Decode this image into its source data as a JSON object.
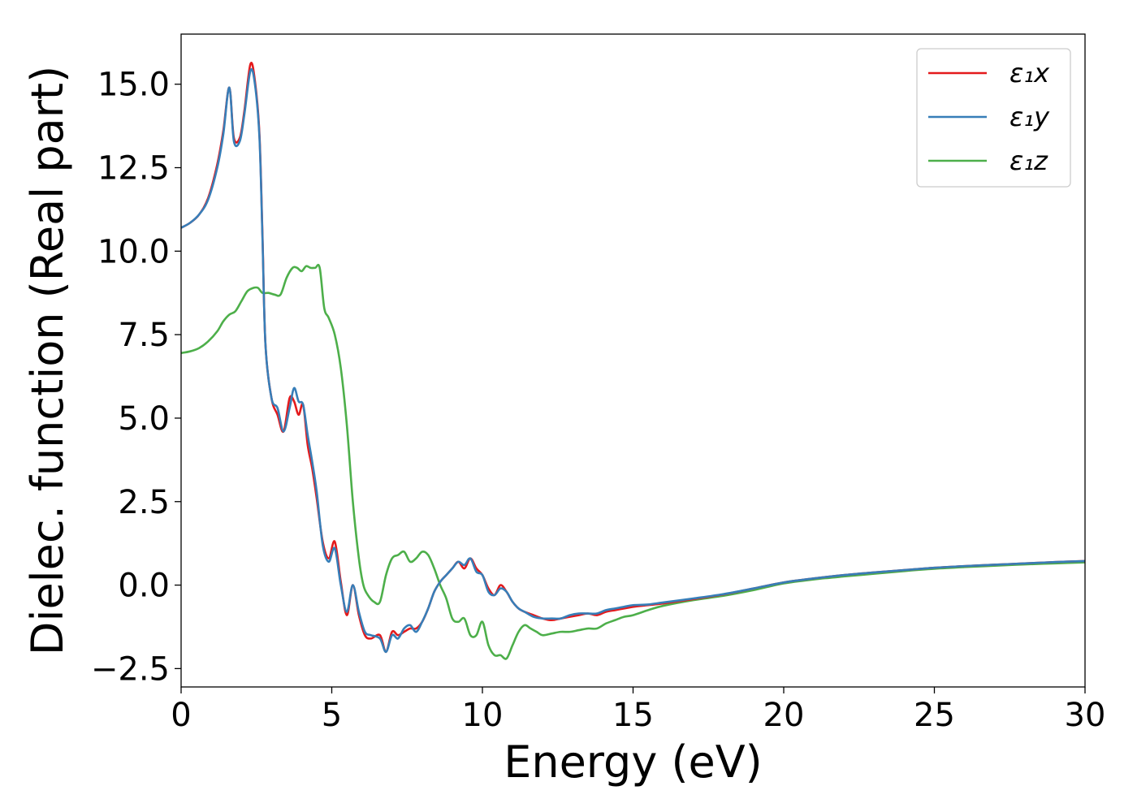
{
  "chart_data": {
    "type": "line",
    "xlabel": "Energy (eV)",
    "ylabel": "Dielec. function (Real part)",
    "xlim": [
      0,
      30
    ],
    "ylim": [
      -3.05,
      16.5
    ],
    "xticks": [
      0,
      5,
      10,
      15,
      20,
      25,
      30
    ],
    "xtick_labels": [
      "0",
      "5",
      "10",
      "15",
      "20",
      "25",
      "30"
    ],
    "yticks": [
      -2.5,
      0,
      2.5,
      5,
      7.5,
      10,
      12.5,
      15
    ],
    "ytick_labels": [
      "−2.5",
      "0.0",
      "2.5",
      "5.0",
      "7.5",
      "10.0",
      "12.5",
      "15.0"
    ],
    "grid": false,
    "legend_position": "top-right",
    "series": [
      {
        "name": "ε₁x",
        "color": "#e41a1c",
        "x": [
          0,
          0.3,
          0.6,
          0.9,
          1.2,
          1.4,
          1.6,
          1.75,
          1.95,
          2.1,
          2.3,
          2.45,
          2.6,
          2.7,
          2.8,
          3.0,
          3.2,
          3.4,
          3.6,
          3.75,
          3.9,
          4.05,
          4.2,
          4.35,
          4.5,
          4.7,
          4.9,
          5.1,
          5.3,
          5.5,
          5.7,
          5.9,
          6.1,
          6.3,
          6.6,
          6.8,
          7.0,
          7.2,
          7.4,
          7.6,
          7.8,
          8.0,
          8.2,
          8.4,
          8.6,
          8.8,
          9.0,
          9.2,
          9.4,
          9.6,
          9.8,
          10.0,
          10.2,
          10.4,
          10.6,
          10.8,
          11.0,
          11.2,
          11.4,
          11.7,
          12.0,
          12.3,
          12.6,
          12.9,
          13.2,
          13.5,
          13.8,
          14.1,
          14.4,
          14.7,
          15.0,
          15.5,
          16.0,
          17.0,
          18.0,
          19.0,
          20.0,
          21.0,
          22.0,
          23.0,
          24.0,
          25.0,
          26.0,
          27.0,
          28.0,
          29.0,
          30.0
        ],
        "y": [
          10.7,
          10.85,
          11.1,
          11.6,
          12.6,
          13.6,
          14.9,
          13.4,
          13.4,
          14.2,
          15.6,
          15.1,
          13.5,
          10.5,
          7.2,
          5.6,
          5.1,
          4.6,
          5.6,
          5.5,
          5.1,
          5.4,
          4.2,
          3.5,
          2.6,
          1.3,
          0.8,
          1.3,
          0.1,
          -0.9,
          0.0,
          -0.9,
          -1.5,
          -1.6,
          -1.5,
          -2.0,
          -1.4,
          -1.5,
          -1.4,
          -1.3,
          -1.3,
          -1.1,
          -0.7,
          -0.2,
          0.1,
          0.3,
          0.5,
          0.7,
          0.5,
          0.8,
          0.5,
          0.3,
          -0.1,
          -0.3,
          0.0,
          -0.2,
          -0.5,
          -0.7,
          -0.8,
          -0.9,
          -1.0,
          -1.05,
          -1.0,
          -0.95,
          -0.9,
          -0.85,
          -0.9,
          -0.8,
          -0.75,
          -0.7,
          -0.65,
          -0.6,
          -0.55,
          -0.42,
          -0.28,
          -0.1,
          0.08,
          0.2,
          0.3,
          0.38,
          0.45,
          0.52,
          0.57,
          0.61,
          0.65,
          0.69,
          0.72
        ]
      },
      {
        "name": "ε₁y",
        "color": "#377eb8",
        "x": [
          0,
          0.3,
          0.6,
          0.9,
          1.2,
          1.4,
          1.6,
          1.75,
          1.95,
          2.1,
          2.3,
          2.45,
          2.6,
          2.7,
          2.8,
          3.0,
          3.2,
          3.4,
          3.6,
          3.75,
          3.9,
          4.05,
          4.2,
          4.35,
          4.5,
          4.7,
          4.9,
          5.1,
          5.3,
          5.5,
          5.7,
          5.9,
          6.1,
          6.3,
          6.6,
          6.8,
          7.0,
          7.2,
          7.4,
          7.6,
          7.8,
          8.0,
          8.2,
          8.4,
          8.6,
          8.8,
          9.0,
          9.2,
          9.4,
          9.6,
          9.8,
          10.0,
          10.2,
          10.4,
          10.6,
          10.8,
          11.0,
          11.2,
          11.4,
          11.7,
          12.0,
          12.3,
          12.6,
          12.9,
          13.2,
          13.5,
          13.8,
          14.1,
          14.4,
          14.7,
          15.0,
          15.5,
          16.0,
          17.0,
          18.0,
          19.0,
          20.0,
          21.0,
          22.0,
          23.0,
          24.0,
          25.0,
          26.0,
          27.0,
          28.0,
          29.0,
          30.0
        ],
        "y": [
          10.7,
          10.85,
          11.1,
          11.55,
          12.5,
          13.5,
          14.9,
          13.3,
          13.3,
          14.1,
          15.4,
          15.0,
          13.4,
          10.4,
          7.2,
          5.6,
          5.3,
          4.6,
          5.3,
          5.9,
          5.5,
          5.4,
          4.5,
          3.7,
          2.8,
          1.2,
          0.7,
          1.1,
          0.0,
          -0.8,
          0.0,
          -0.8,
          -1.4,
          -1.5,
          -1.6,
          -2.0,
          -1.5,
          -1.6,
          -1.3,
          -1.2,
          -1.4,
          -1.1,
          -0.7,
          -0.2,
          0.1,
          0.3,
          0.5,
          0.7,
          0.6,
          0.8,
          0.4,
          0.3,
          -0.2,
          -0.3,
          -0.1,
          -0.2,
          -0.5,
          -0.7,
          -0.8,
          -0.95,
          -1.0,
          -1.0,
          -1.0,
          -0.9,
          -0.85,
          -0.85,
          -0.85,
          -0.75,
          -0.7,
          -0.65,
          -0.6,
          -0.58,
          -0.52,
          -0.4,
          -0.27,
          -0.1,
          0.08,
          0.2,
          0.3,
          0.38,
          0.45,
          0.52,
          0.57,
          0.61,
          0.65,
          0.69,
          0.72
        ]
      },
      {
        "name": "ε₁z",
        "color": "#4daf4a",
        "x": [
          0,
          0.3,
          0.6,
          0.9,
          1.2,
          1.4,
          1.6,
          1.8,
          2.0,
          2.2,
          2.4,
          2.55,
          2.7,
          2.9,
          3.1,
          3.3,
          3.5,
          3.7,
          3.85,
          4.0,
          4.15,
          4.3,
          4.45,
          4.6,
          4.75,
          4.9,
          5.1,
          5.3,
          5.5,
          5.7,
          5.9,
          6.05,
          6.2,
          6.4,
          6.6,
          6.8,
          7.0,
          7.2,
          7.4,
          7.6,
          7.8,
          8.0,
          8.2,
          8.4,
          8.6,
          8.8,
          9.0,
          9.2,
          9.4,
          9.6,
          9.8,
          10.0,
          10.2,
          10.4,
          10.6,
          10.8,
          11.0,
          11.2,
          11.4,
          11.6,
          11.8,
          12.0,
          12.3,
          12.6,
          12.9,
          13.2,
          13.5,
          13.8,
          14.1,
          14.4,
          14.7,
          15.0,
          15.5,
          16.0,
          17.0,
          18.0,
          19.0,
          20.0,
          21.0,
          22.0,
          23.0,
          24.0,
          25.0,
          26.0,
          27.0,
          28.0,
          29.0,
          30.0
        ],
        "y": [
          6.95,
          7.0,
          7.1,
          7.3,
          7.6,
          7.9,
          8.1,
          8.2,
          8.5,
          8.8,
          8.9,
          8.9,
          8.75,
          8.75,
          8.7,
          8.7,
          9.2,
          9.5,
          9.5,
          9.4,
          9.55,
          9.5,
          9.5,
          9.5,
          8.3,
          8.0,
          7.5,
          6.5,
          4.8,
          2.5,
          0.8,
          0.0,
          -0.3,
          -0.5,
          -0.5,
          0.3,
          0.8,
          0.9,
          1.0,
          0.7,
          0.8,
          1.0,
          0.9,
          0.5,
          0.0,
          -0.4,
          -1.0,
          -1.1,
          -1.0,
          -1.5,
          -1.5,
          -1.1,
          -1.8,
          -2.1,
          -2.1,
          -2.2,
          -1.8,
          -1.4,
          -1.2,
          -1.3,
          -1.4,
          -1.5,
          -1.45,
          -1.4,
          -1.4,
          -1.35,
          -1.3,
          -1.3,
          -1.15,
          -1.05,
          -0.95,
          -0.9,
          -0.75,
          -0.62,
          -0.45,
          -0.32,
          -0.15,
          0.05,
          0.17,
          0.26,
          0.34,
          0.42,
          0.49,
          0.54,
          0.58,
          0.62,
          0.65,
          0.68
        ]
      }
    ]
  }
}
